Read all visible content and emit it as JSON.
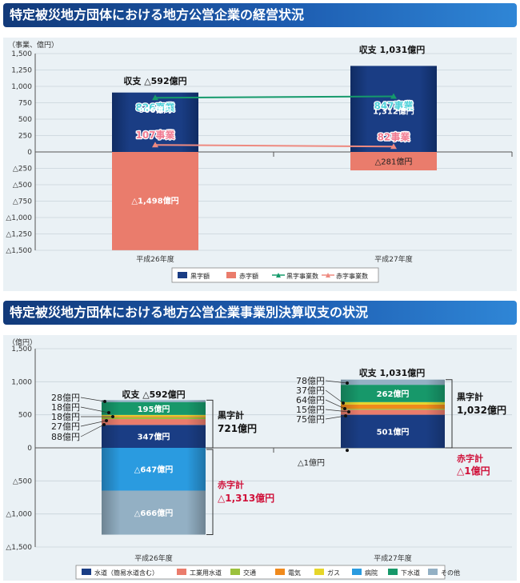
{
  "chart1": {
    "title": "特定被災地方団体における地方公営企業の経営状況",
    "unit_label": "（事業、億円）",
    "y_ticks": [
      "1,500",
      "1,250",
      "1,000",
      "750",
      "500",
      "250",
      "0",
      "△250",
      "△500",
      "△750",
      "△1,000",
      "△1,250",
      "△1,500"
    ],
    "legend": [
      "黒字額",
      "赤字額",
      "黒字事業数",
      "赤字事業数"
    ]
  },
  "chart2": {
    "title": "特定被災地方団体における地方公営企業事業別決算収支の状況",
    "unit_label": "（億円）",
    "y_ticks": [
      "1,500",
      "1,000",
      "500",
      "0",
      "△500",
      "△1,000",
      "△1,500"
    ],
    "legend": [
      "水道（簡易水道含む）",
      "工業用水道",
      "交通",
      "電気",
      "ガス",
      "病院",
      "下水道",
      "その他"
    ]
  },
  "chart_data": [
    {
      "type": "bar",
      "title": "特定被災地方団体における地方公営企業の経営状況",
      "categories": [
        "平成26年度",
        "平成27年度"
      ],
      "ylabel": "（事業、億円）",
      "ylim": [
        -1500,
        1500
      ],
      "grid": true,
      "legend_position": "bottom",
      "series": [
        {
          "name": "黒字額",
          "type": "bar",
          "values": [
            906,
            1312
          ],
          "labels": [
            "906億円",
            "1,312億円"
          ],
          "color": "#1a3d84"
        },
        {
          "name": "赤字額",
          "type": "bar",
          "values": [
            -1498,
            -281
          ],
          "labels": [
            "△1,498億円",
            "△281億円"
          ],
          "color": "#ea7c6c"
        },
        {
          "name": "黒字事業数",
          "type": "line",
          "values": [
            826,
            847
          ],
          "labels": [
            "826事業",
            "847事業"
          ],
          "color": "#159a6b"
        },
        {
          "name": "赤字事業数",
          "type": "line",
          "values": [
            107,
            82
          ],
          "labels": [
            "107事業",
            "82事業"
          ],
          "color": "#ee8a80"
        }
      ],
      "annotations": [
        {
          "category": "平成26年度",
          "text": "収支 △592億円",
          "value": -592
        },
        {
          "category": "平成27年度",
          "text": "収支 1,031億円",
          "value": 1031
        }
      ]
    },
    {
      "type": "bar",
      "title": "特定被災地方団体における地方公営企業事業別決算収支の状況",
      "categories": [
        "平成26年度",
        "平成27年度"
      ],
      "ylabel": "（億円）",
      "ylim": [
        -1500,
        1500
      ],
      "grid": true,
      "legend_position": "bottom",
      "stacked": true,
      "series": [
        {
          "name": "水道（簡易水道含む）",
          "color": "#1a3d84",
          "values": [
            347,
            501
          ],
          "labels": [
            "347億円",
            "501億円"
          ]
        },
        {
          "name": "工業用水道",
          "color": "#ea7c6c",
          "values": [
            88,
            75
          ],
          "labels": [
            "88億円",
            "75億円"
          ]
        },
        {
          "name": "交通",
          "color": "#9bc13c",
          "values": [
            27,
            15
          ],
          "labels": [
            "27億円",
            "15億円"
          ]
        },
        {
          "name": "電気",
          "color": "#f08a1c",
          "values": [
            18,
            64
          ],
          "labels": [
            "18億円",
            "64億円"
          ]
        },
        {
          "name": "ガス",
          "color": "#e6d62a",
          "values": [
            18,
            37
          ],
          "labels": [
            "18億円",
            "37億円"
          ]
        },
        {
          "name": "病院",
          "color": "#2a9be0",
          "values": [
            -647,
            -1
          ],
          "labels": [
            "△647億円",
            "△1億円"
          ]
        },
        {
          "name": "下水道",
          "color": "#17986a",
          "values": [
            195,
            262
          ],
          "labels": [
            "195億円",
            "262億円"
          ]
        },
        {
          "name": "その他",
          "color": "#93b0c4",
          "values": [
            28,
            78
          ],
          "labels": [
            "28億円",
            "78億円"
          ],
          "neg_value": -666,
          "neg_label": "△666億円"
        }
      ],
      "annotations": [
        {
          "category": "平成26年度",
          "text": "収支 △592億円"
        },
        {
          "category": "平成26年度",
          "text": "黒字計",
          "value_text": "721億円",
          "value": 721
        },
        {
          "category": "平成26年度",
          "text": "赤字計",
          "value_text": "△1,313億円",
          "value": -1313
        },
        {
          "category": "平成27年度",
          "text": "収支 1,031億円"
        },
        {
          "category": "平成27年度",
          "text": "黒字計",
          "value_text": "1,032億円",
          "value": 1032
        },
        {
          "category": "平成27年度",
          "text": "赤字計",
          "value_text": "△1億円",
          "value": -1
        }
      ]
    }
  ]
}
